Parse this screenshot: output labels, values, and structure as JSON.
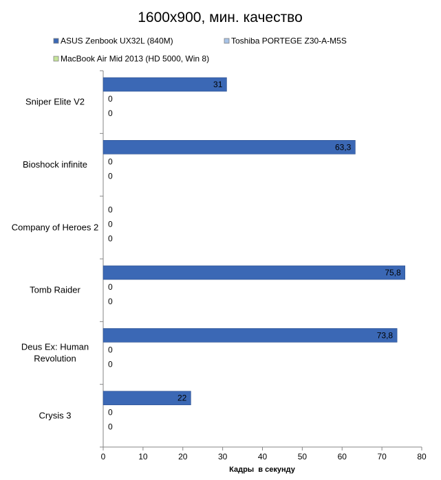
{
  "chart_data": {
    "type": "bar",
    "orientation": "horizontal",
    "title": "1600x900, мин. качество",
    "xlabel": "Кадры  в секунду",
    "ylabel": "",
    "xlim": [
      0,
      80
    ],
    "x_ticks": [
      0,
      10,
      20,
      30,
      40,
      50,
      60,
      70,
      80
    ],
    "grid": false,
    "legend_position": "top",
    "categories": [
      [
        "Sniper Elite V2"
      ],
      [
        "Bioshock infinite"
      ],
      [
        "Company of Heroes 2"
      ],
      [
        "Tomb Raider"
      ],
      [
        "Deus Ex: Human",
        "Revolution"
      ],
      [
        "Crysis 3"
      ]
    ],
    "series": [
      {
        "name": "ASUS Zenbook UX32L (840M)",
        "color": "#3B68B5",
        "values": [
          31,
          63.3,
          0,
          75.8,
          73.8,
          22
        ],
        "labels": [
          "31",
          "63,3",
          "0",
          "75,8",
          "73,8",
          "22"
        ]
      },
      {
        "name": "Toshiba PORTEGE Z30-A-M5S",
        "color": "#A8C4E8",
        "values": [
          0,
          0,
          0,
          0,
          0,
          0
        ],
        "labels": [
          "0",
          "0",
          "0",
          "0",
          "0",
          "0"
        ]
      },
      {
        "name": "MacBook Air Mid 2013 (HD 5000, Win 8)",
        "color": "#C6E59A",
        "values": [
          0,
          0,
          0,
          0,
          0,
          0
        ],
        "labels": [
          "0",
          "0",
          "0",
          "0",
          "0",
          "0"
        ]
      }
    ]
  }
}
